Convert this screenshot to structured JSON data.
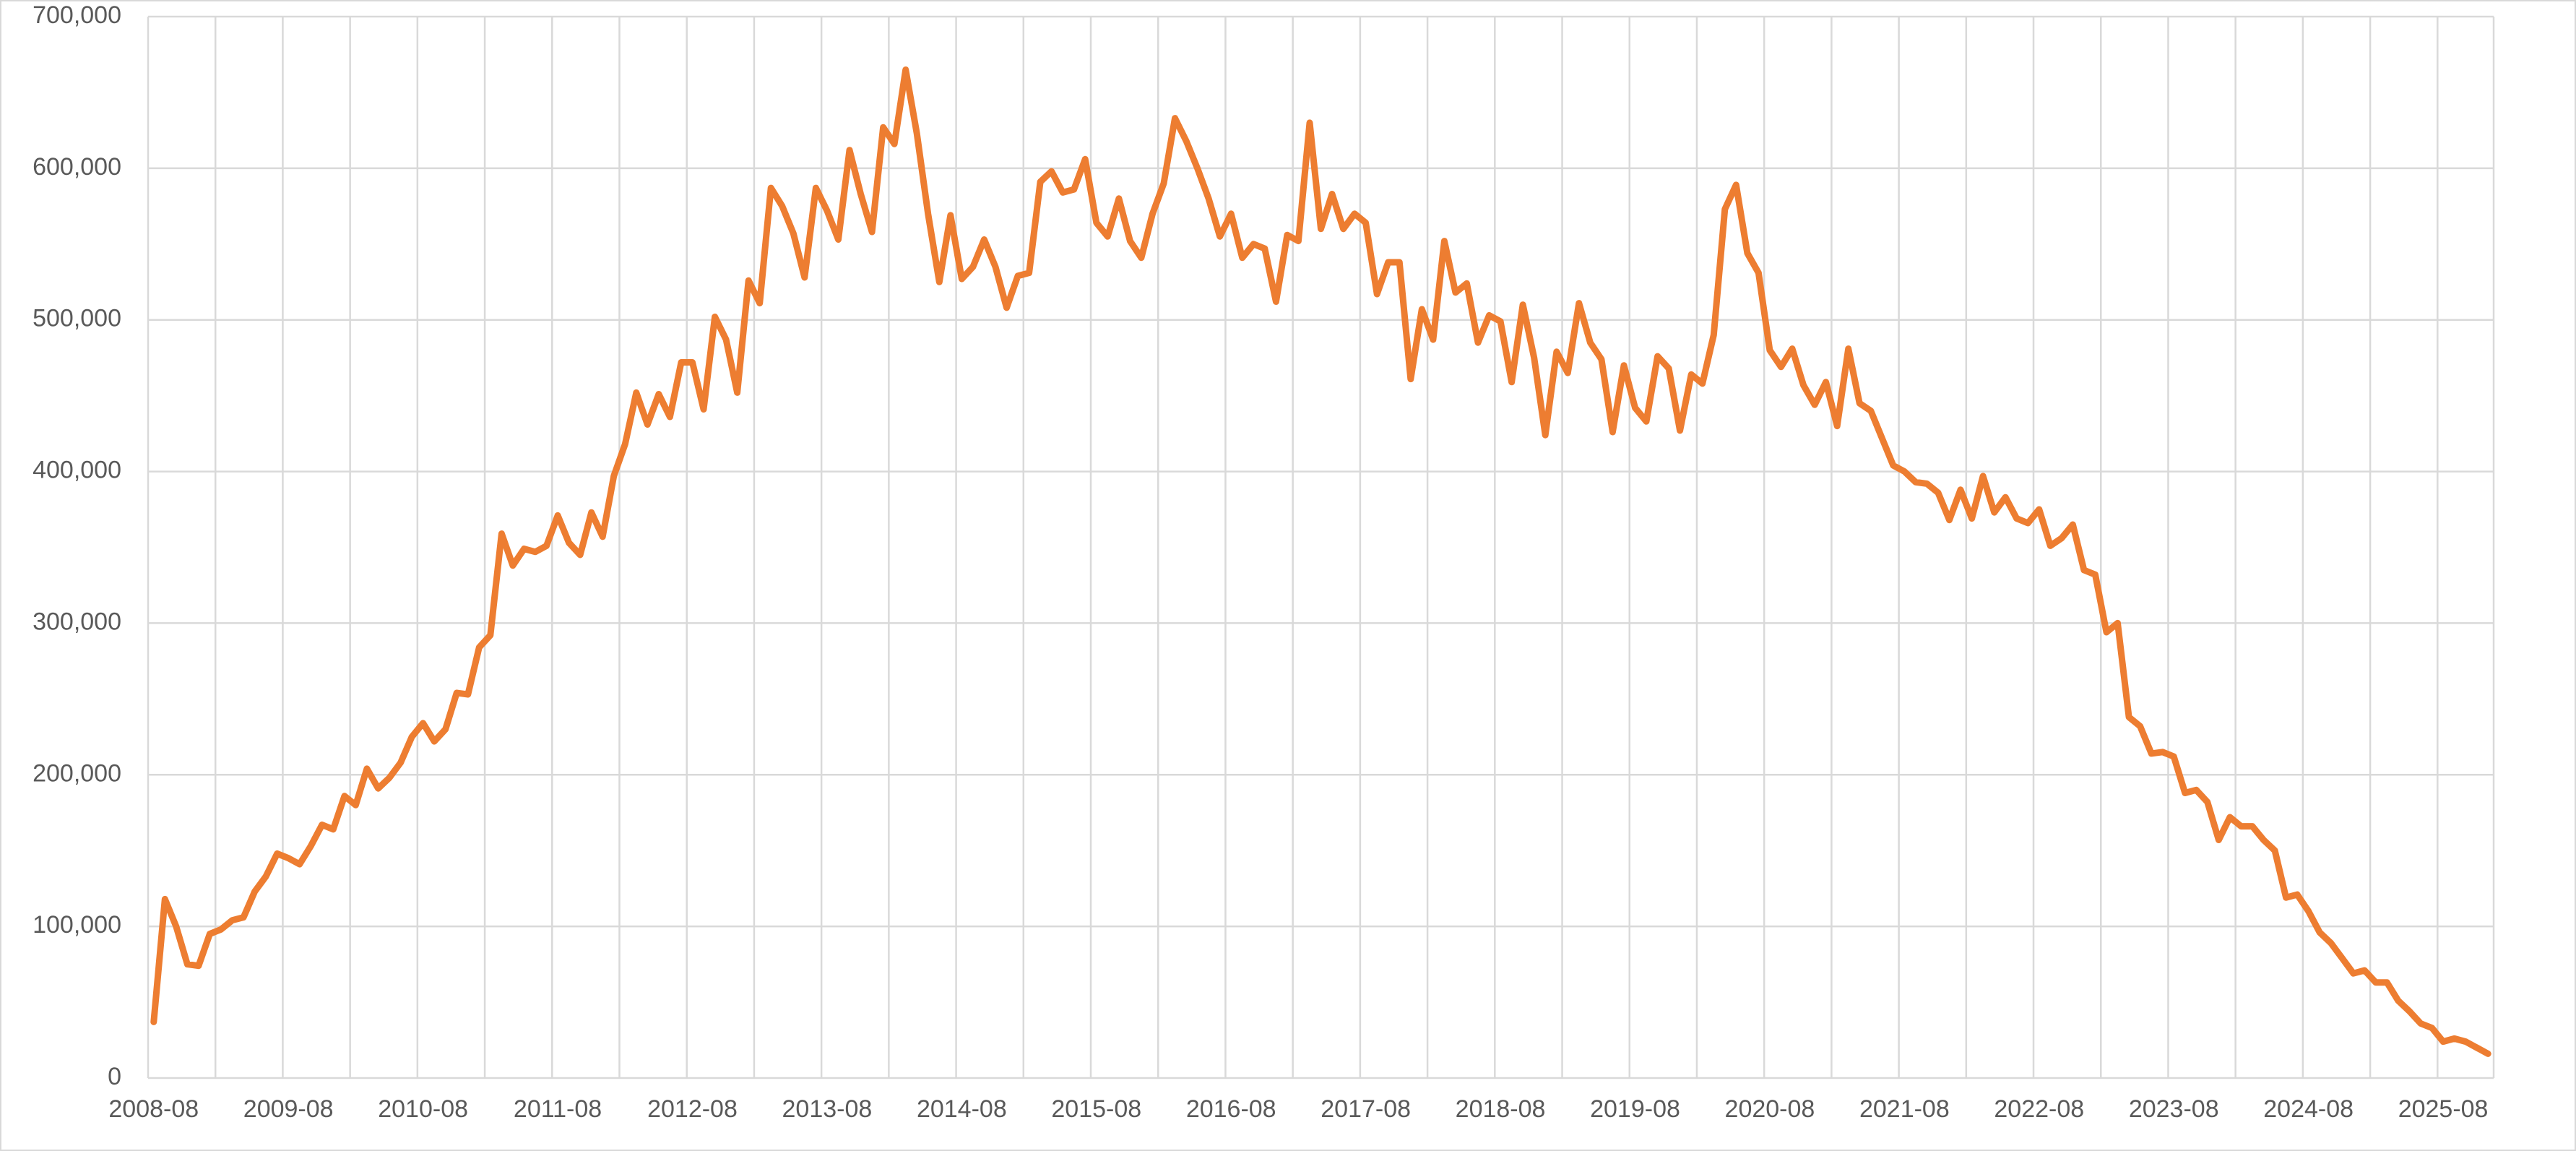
{
  "chart_data": {
    "type": "line",
    "categories": [
      "2008-08",
      null,
      null,
      null,
      null,
      null,
      null,
      null,
      null,
      null,
      null,
      null,
      "2009-08",
      null,
      null,
      null,
      null,
      null,
      null,
      null,
      null,
      null,
      null,
      null,
      "2010-08",
      null,
      null,
      null,
      null,
      null,
      null,
      null,
      null,
      null,
      null,
      null,
      "2011-08",
      null,
      null,
      null,
      null,
      null,
      null,
      null,
      null,
      null,
      null,
      null,
      "2012-08",
      null,
      null,
      null,
      null,
      null,
      null,
      null,
      null,
      null,
      null,
      null,
      "2013-08",
      null,
      null,
      null,
      null,
      null,
      null,
      null,
      null,
      null,
      null,
      null,
      "2014-08",
      null,
      null,
      null,
      null,
      null,
      null,
      null,
      null,
      null,
      null,
      null,
      "2015-08",
      null,
      null,
      null,
      null,
      null,
      null,
      null,
      null,
      null,
      null,
      null,
      "2016-08",
      null,
      null,
      null,
      null,
      null,
      null,
      null,
      null,
      null,
      null,
      null,
      "2017-08",
      null,
      null,
      null,
      null,
      null,
      null,
      null,
      null,
      null,
      null,
      null,
      "2018-08",
      null,
      null,
      null,
      null,
      null,
      null,
      null,
      null,
      null,
      null,
      null,
      "2019-08",
      null,
      null,
      null,
      null,
      null,
      null,
      null,
      null,
      null,
      null,
      null,
      "2020-08",
      null,
      null,
      null,
      null,
      null,
      null,
      null,
      null,
      null,
      null,
      null,
      "2021-08",
      null,
      null,
      null,
      null,
      null,
      null,
      null,
      null,
      null,
      null,
      null,
      "2022-08",
      null,
      null,
      null,
      null,
      null,
      null,
      null,
      null,
      null,
      null,
      null,
      "2023-08",
      null,
      null,
      null,
      null,
      null,
      null,
      null,
      null,
      null,
      null,
      null,
      "2024-08",
      null,
      null,
      null,
      null,
      null,
      null,
      null,
      null,
      null,
      null,
      null,
      "2025-08",
      null,
      null,
      null,
      null
    ],
    "values": [
      37000,
      118000,
      100000,
      75000,
      74000,
      95000,
      98000,
      104000,
      106000,
      123000,
      133000,
      148000,
      145000,
      141000,
      153000,
      167000,
      164000,
      186000,
      180000,
      204000,
      191000,
      198000,
      208000,
      225000,
      234000,
      222000,
      230000,
      254000,
      253000,
      284000,
      292000,
      359000,
      338000,
      349000,
      347000,
      351000,
      371000,
      353000,
      345000,
      373000,
      357000,
      397000,
      418000,
      452000,
      431000,
      451000,
      436000,
      472000,
      472000,
      441000,
      502000,
      487000,
      452000,
      526000,
      511000,
      587000,
      575000,
      557000,
      528000,
      587000,
      572000,
      553000,
      612000,
      583000,
      558000,
      627000,
      616000,
      665000,
      623000,
      570000,
      525000,
      569000,
      527000,
      535000,
      553000,
      535000,
      508000,
      529000,
      531000,
      591000,
      598000,
      584000,
      586000,
      606000,
      564000,
      555000,
      580000,
      552000,
      541000,
      570000,
      590000,
      633000,
      618000,
      600000,
      580000,
      555000,
      570000,
      541000,
      550000,
      547000,
      512000,
      556000,
      552000,
      630000,
      560000,
      583000,
      560000,
      570000,
      564000,
      517000,
      538000,
      538000,
      461000,
      507000,
      487000,
      552000,
      518000,
      524000,
      485000,
      503000,
      499000,
      459000,
      510000,
      475000,
      424000,
      479000,
      465000,
      511000,
      485000,
      474000,
      426000,
      470000,
      442000,
      433000,
      476000,
      468000,
      427000,
      464000,
      458000,
      490000,
      573000,
      589000,
      544000,
      531000,
      480000,
      469000,
      481000,
      457000,
      444000,
      459000,
      430000,
      481000,
      445000,
      440000,
      422000,
      404000,
      400000,
      393000,
      392000,
      386000,
      368000,
      388000,
      369000,
      397000,
      373000,
      383000,
      369000,
      366000,
      375000,
      351000,
      356000,
      365000,
      335000,
      332000,
      294000,
      300000,
      238000,
      232000,
      214000,
      215000,
      212000,
      188000,
      190000,
      182000,
      157000,
      172000,
      166000,
      166000,
      157000,
      150000,
      119000,
      121000,
      110000,
      96000,
      89000,
      79000,
      69000,
      71000,
      63000,
      63000,
      51000,
      44000,
      36000,
      33000,
      24000,
      26000,
      24000,
      20000,
      16000
    ],
    "color": "#ed7d31",
    "ylim": [
      0,
      700000
    ],
    "yticks": [
      0,
      {
        "value": 100000,
        "label": "100,000"
      },
      {
        "value": 200000,
        "label": "200,000"
      },
      {
        "value": 300000,
        "label": "300,000"
      },
      {
        "value": 400000,
        "label": "400,000"
      },
      {
        "value": 500000,
        "label": "500,000"
      },
      {
        "value": 600000,
        "label": "600,000"
      },
      {
        "value": 700000,
        "label": "700,000"
      }
    ],
    "grid": true
  }
}
